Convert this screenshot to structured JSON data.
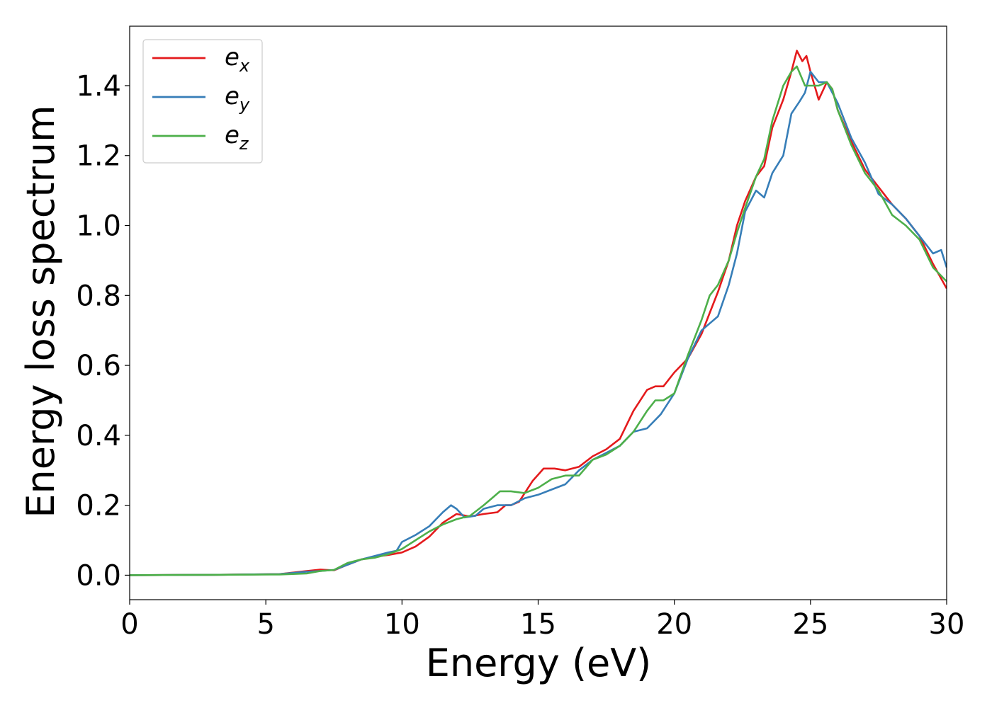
{
  "chart_data": {
    "type": "line",
    "title": "",
    "xlabel": "Energy (eV)",
    "ylabel": "Energy loss spectrum",
    "xlim": [
      0,
      30
    ],
    "ylim": [
      -0.07,
      1.57
    ],
    "xticks": [
      "0",
      "5",
      "10",
      "15",
      "20",
      "25",
      "30"
    ],
    "yticks": [
      "0.0",
      "0.2",
      "0.4",
      "0.6",
      "0.8",
      "1.0",
      "1.2",
      "1.4"
    ],
    "grid": false,
    "legend_position": "top-left",
    "series": [
      {
        "name": "e_x",
        "label_main": "e",
        "label_sub": "x",
        "color": "#e41a1c",
        "points": [
          [
            0,
            0
          ],
          [
            3,
            0.001
          ],
          [
            5.5,
            0.003
          ],
          [
            6.5,
            0.012
          ],
          [
            7.0,
            0.016
          ],
          [
            7.5,
            0.014
          ],
          [
            8.0,
            0.03
          ],
          [
            8.5,
            0.045
          ],
          [
            9.0,
            0.053
          ],
          [
            9.5,
            0.058
          ],
          [
            10.0,
            0.065
          ],
          [
            10.5,
            0.082
          ],
          [
            11.0,
            0.11
          ],
          [
            11.5,
            0.15
          ],
          [
            12.0,
            0.175
          ],
          [
            12.5,
            0.168
          ],
          [
            13.0,
            0.175
          ],
          [
            13.5,
            0.18
          ],
          [
            13.8,
            0.2
          ],
          [
            14.0,
            0.2
          ],
          [
            14.3,
            0.21
          ],
          [
            14.8,
            0.27
          ],
          [
            15.2,
            0.305
          ],
          [
            15.6,
            0.305
          ],
          [
            16.0,
            0.3
          ],
          [
            16.5,
            0.31
          ],
          [
            17.0,
            0.34
          ],
          [
            17.5,
            0.36
          ],
          [
            18.0,
            0.39
          ],
          [
            18.5,
            0.47
          ],
          [
            19.0,
            0.53
          ],
          [
            19.3,
            0.54
          ],
          [
            19.6,
            0.54
          ],
          [
            20.0,
            0.58
          ],
          [
            20.5,
            0.62
          ],
          [
            21.0,
            0.69
          ],
          [
            21.3,
            0.75
          ],
          [
            21.6,
            0.81
          ],
          [
            22.0,
            0.9
          ],
          [
            22.3,
            1.0
          ],
          [
            22.6,
            1.07
          ],
          [
            23.0,
            1.14
          ],
          [
            23.3,
            1.17
          ],
          [
            23.6,
            1.28
          ],
          [
            24.0,
            1.36
          ],
          [
            24.3,
            1.44
          ],
          [
            24.5,
            1.5
          ],
          [
            24.7,
            1.47
          ],
          [
            24.85,
            1.485
          ],
          [
            25.0,
            1.44
          ],
          [
            25.3,
            1.36
          ],
          [
            25.6,
            1.41
          ],
          [
            25.8,
            1.39
          ],
          [
            26.0,
            1.33
          ],
          [
            26.5,
            1.24
          ],
          [
            27.0,
            1.16
          ],
          [
            27.5,
            1.11
          ],
          [
            28.0,
            1.06
          ],
          [
            28.5,
            1.02
          ],
          [
            29.0,
            0.97
          ],
          [
            29.5,
            0.89
          ],
          [
            30.0,
            0.82
          ]
        ]
      },
      {
        "name": "e_y",
        "label_main": "e",
        "label_sub": "y",
        "color": "#377eb8",
        "points": [
          [
            0,
            0
          ],
          [
            3,
            0.001
          ],
          [
            5.5,
            0.003
          ],
          [
            6.5,
            0.01
          ],
          [
            7.0,
            0.012
          ],
          [
            7.5,
            0.015
          ],
          [
            8.0,
            0.03
          ],
          [
            8.5,
            0.045
          ],
          [
            9.0,
            0.055
          ],
          [
            9.5,
            0.065
          ],
          [
            9.8,
            0.07
          ],
          [
            10.0,
            0.095
          ],
          [
            10.5,
            0.115
          ],
          [
            11.0,
            0.14
          ],
          [
            11.5,
            0.18
          ],
          [
            11.8,
            0.2
          ],
          [
            12.0,
            0.19
          ],
          [
            12.3,
            0.165
          ],
          [
            12.7,
            0.17
          ],
          [
            13.0,
            0.19
          ],
          [
            13.5,
            0.2
          ],
          [
            14.0,
            0.2
          ],
          [
            14.5,
            0.22
          ],
          [
            15.0,
            0.23
          ],
          [
            15.5,
            0.245
          ],
          [
            16.0,
            0.26
          ],
          [
            16.5,
            0.3
          ],
          [
            17.0,
            0.33
          ],
          [
            17.5,
            0.35
          ],
          [
            18.0,
            0.37
          ],
          [
            18.5,
            0.41
          ],
          [
            19.0,
            0.42
          ],
          [
            19.5,
            0.46
          ],
          [
            20.0,
            0.52
          ],
          [
            20.5,
            0.62
          ],
          [
            21.0,
            0.7
          ],
          [
            21.3,
            0.72
          ],
          [
            21.6,
            0.74
          ],
          [
            22.0,
            0.83
          ],
          [
            22.3,
            0.92
          ],
          [
            22.6,
            1.04
          ],
          [
            23.0,
            1.1
          ],
          [
            23.3,
            1.08
          ],
          [
            23.6,
            1.15
          ],
          [
            24.0,
            1.2
          ],
          [
            24.3,
            1.32
          ],
          [
            24.6,
            1.355
          ],
          [
            24.8,
            1.38
          ],
          [
            25.0,
            1.44
          ],
          [
            25.3,
            1.41
          ],
          [
            25.6,
            1.41
          ],
          [
            26.0,
            1.35
          ],
          [
            26.5,
            1.25
          ],
          [
            27.0,
            1.18
          ],
          [
            27.5,
            1.09
          ],
          [
            28.0,
            1.06
          ],
          [
            28.5,
            1.02
          ],
          [
            29.0,
            0.97
          ],
          [
            29.5,
            0.92
          ],
          [
            29.8,
            0.93
          ],
          [
            30.0,
            0.88
          ]
        ]
      },
      {
        "name": "e_z",
        "label_main": "e",
        "label_sub": "z",
        "color": "#4daf4a",
        "points": [
          [
            0,
            0
          ],
          [
            3,
            0.001
          ],
          [
            5.5,
            0.002
          ],
          [
            6.5,
            0.005
          ],
          [
            7.0,
            0.012
          ],
          [
            7.5,
            0.015
          ],
          [
            8.0,
            0.035
          ],
          [
            8.5,
            0.045
          ],
          [
            9.0,
            0.05
          ],
          [
            9.5,
            0.06
          ],
          [
            10.0,
            0.075
          ],
          [
            10.5,
            0.1
          ],
          [
            11.0,
            0.125
          ],
          [
            11.5,
            0.145
          ],
          [
            12.0,
            0.16
          ],
          [
            12.5,
            0.17
          ],
          [
            13.0,
            0.2
          ],
          [
            13.3,
            0.22
          ],
          [
            13.6,
            0.24
          ],
          [
            14.0,
            0.24
          ],
          [
            14.5,
            0.235
          ],
          [
            15.0,
            0.25
          ],
          [
            15.5,
            0.275
          ],
          [
            16.0,
            0.285
          ],
          [
            16.5,
            0.285
          ],
          [
            17.0,
            0.33
          ],
          [
            17.5,
            0.345
          ],
          [
            18.0,
            0.37
          ],
          [
            18.5,
            0.41
          ],
          [
            19.0,
            0.47
          ],
          [
            19.3,
            0.5
          ],
          [
            19.6,
            0.5
          ],
          [
            20.0,
            0.52
          ],
          [
            20.5,
            0.63
          ],
          [
            21.0,
            0.73
          ],
          [
            21.3,
            0.8
          ],
          [
            21.6,
            0.83
          ],
          [
            22.0,
            0.9
          ],
          [
            22.3,
            0.98
          ],
          [
            22.6,
            1.05
          ],
          [
            23.0,
            1.14
          ],
          [
            23.3,
            1.19
          ],
          [
            23.6,
            1.3
          ],
          [
            24.0,
            1.4
          ],
          [
            24.3,
            1.44
          ],
          [
            24.5,
            1.455
          ],
          [
            24.8,
            1.4
          ],
          [
            25.0,
            1.4
          ],
          [
            25.3,
            1.4
          ],
          [
            25.6,
            1.41
          ],
          [
            25.8,
            1.39
          ],
          [
            26.0,
            1.33
          ],
          [
            26.5,
            1.23
          ],
          [
            27.0,
            1.15
          ],
          [
            27.5,
            1.1
          ],
          [
            28.0,
            1.03
          ],
          [
            28.5,
            1.0
          ],
          [
            29.0,
            0.96
          ],
          [
            29.5,
            0.88
          ],
          [
            30.0,
            0.84
          ]
        ]
      }
    ]
  }
}
